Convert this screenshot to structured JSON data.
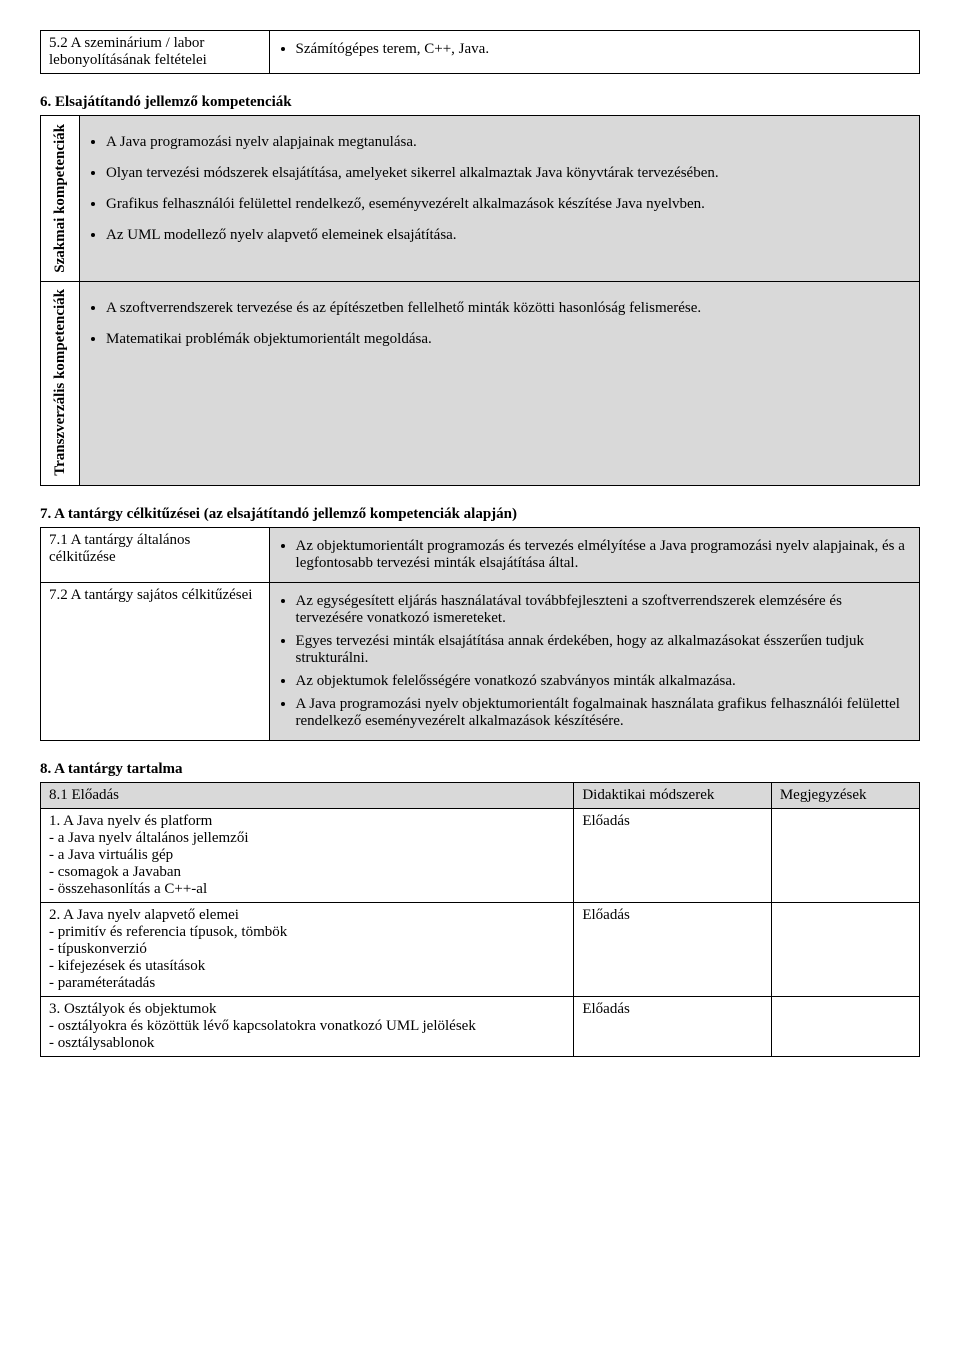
{
  "table5": {
    "row1_label": "5.2 A szeminárium / labor lebonyolításának feltételei",
    "row1_value": "Számítógépes terem, C++, Java."
  },
  "section6": {
    "title": "6. Elsajátítandó jellemző kompetenciák",
    "row1_label": "Szakmai kompetenciák",
    "row1_items": [
      "A Java programozási nyelv alapjainak megtanulása.",
      "Olyan tervezési módszerek elsajátítása, amelyeket sikerrel alkalmaztak Java könyvtárak tervezésében.",
      "Grafikus felhasználói felülettel rendelkező, eseményvezérelt alkalmazások készítése Java nyelvben.",
      "Az UML modellező nyelv alapvető elemeinek elsajátítása."
    ],
    "row2_label": "Transzverzális kompetenciák",
    "row2_items": [
      "A szoftverrendszerek tervezése és az építészetben fellelhető minták közötti hasonlóság felismerése.",
      "Matematikai problémák objektumorientált megoldása."
    ]
  },
  "section7": {
    "title": "7. A tantárgy célkitűzései (az elsajátítandó jellemző kompetenciák alapján)",
    "row1_label": "7.1 A tantárgy általános célkitűzése",
    "row1_items": [
      "Az objektumorientált programozás és tervezés elmélyítése a Java programozási nyelv alapjainak, és a legfontosabb tervezési minták elsajátítása által."
    ],
    "row2_label": "7.2 A tantárgy sajátos célkitűzései",
    "row2_items": [
      "Az egységesített eljárás használatával továbbfejleszteni a szoftverrendszerek elemzésére és tervezésére vonatkozó ismereteket.",
      "Egyes tervezési minták elsajátítása annak érdekében, hogy az alkalmazásokat ésszerűen tudjuk strukturálni.",
      "Az objektumok felelősségére vonatkozó szabványos minták alkalmazása.",
      "A Java programozási nyelv objektumorientált fogalmainak használata grafikus felhasználói felülettel rendelkező eseményvezérelt alkalmazások készítésére."
    ]
  },
  "section8": {
    "title": "8. A tantárgy tartalma",
    "header_c1": "8.1 Előadás",
    "header_c2": "Didaktikai módszerek",
    "header_c3": "Megjegyzések",
    "rows": [
      {
        "title": "1. A Java nyelv és platform",
        "lines": [
          "- a Java nyelv általános jellemzői",
          "- a Java virtuális gép",
          "- csomagok a Javaban",
          "- összehasonlítás a C++-al"
        ],
        "method": "Előadás",
        "notes": ""
      },
      {
        "title": "2. A Java nyelv alapvető elemei",
        "lines": [
          "- primitív és referencia típusok, tömbök",
          "- típuskonverzió",
          "- kifejezések és utasítások",
          "- paraméterátadás"
        ],
        "method": "Előadás",
        "notes": ""
      },
      {
        "title": "3. Osztályok és objektumok",
        "lines": [
          "- osztályokra és közöttük lévő kapcsolatokra vonatkozó UML jelölések",
          "- osztálysablonok"
        ],
        "method": "Előadás",
        "notes": ""
      }
    ]
  }
}
